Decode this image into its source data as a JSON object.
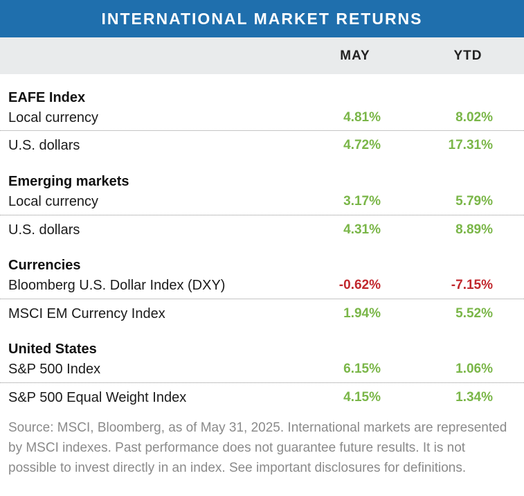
{
  "title": "INTERNATIONAL MARKET RETURNS",
  "columns": {
    "may": "MAY",
    "ytd": "YTD"
  },
  "sections": [
    {
      "title": "EAFE Index",
      "rows": [
        {
          "label": "Local currency",
          "may": "4.81%",
          "ytd": "8.02%"
        },
        {
          "label": "U.S. dollars",
          "may": "4.72%",
          "ytd": "17.31%"
        }
      ]
    },
    {
      "title": "Emerging markets",
      "rows": [
        {
          "label": "Local currency",
          "may": "3.17%",
          "ytd": "5.79%"
        },
        {
          "label": "U.S. dollars",
          "may": "4.31%",
          "ytd": "8.89%"
        }
      ]
    },
    {
      "title": "Currencies",
      "rows": [
        {
          "label": "Bloomberg U.S. Dollar Index (DXY)",
          "may": "-0.62%",
          "ytd": "-7.15%"
        },
        {
          "label": "MSCI EM Currency Index",
          "may": "1.94%",
          "ytd": "5.52%"
        }
      ]
    },
    {
      "title": "United States",
      "rows": [
        {
          "label": "S&P 500 Index",
          "may": "6.15%",
          "ytd": "1.06%"
        },
        {
          "label": "S&P 500 Equal Weight Index",
          "may": "4.15%",
          "ytd": "1.34%"
        }
      ]
    }
  ],
  "source": "Source: MSCI, Bloomberg, as of May 31, 2025. International markets are represented by MSCI indexes. Past performance does not guarantee future results. It is not possible to invest directly in an index. See important disclosures for definitions.",
  "colors": {
    "header": "#1f6fad",
    "positive": "#7ab648",
    "negative": "#c1272d"
  }
}
